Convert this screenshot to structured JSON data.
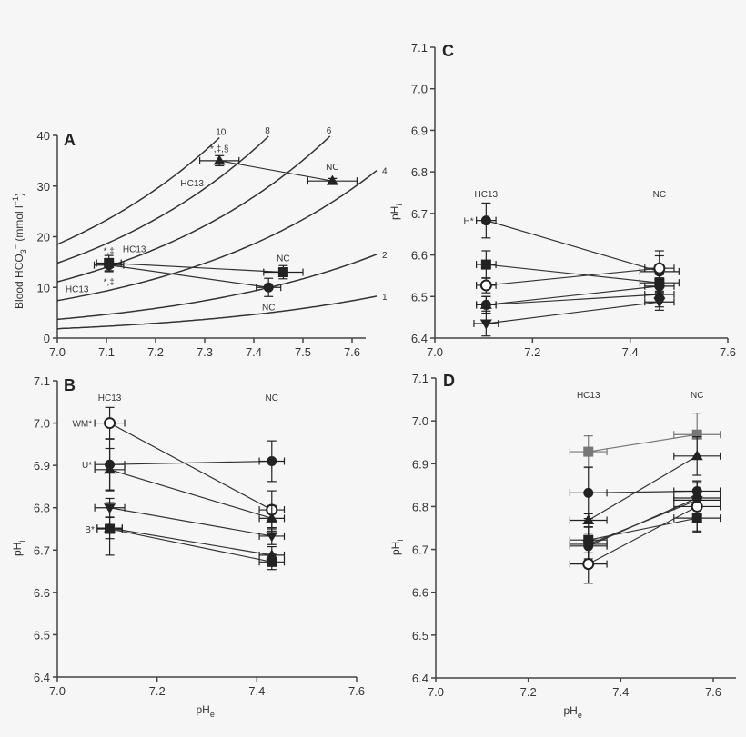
{
  "chart_data": [
    {
      "panel": "A",
      "type": "scatter",
      "ylabel": {
        "main": "Blood HCO",
        "sub": "3",
        "sup": "−",
        "rest": " (mmol l",
        "sup2": "−1",
        "end": ")"
      },
      "xlim": [
        7.0,
        7.65
      ],
      "ylim": [
        0,
        40
      ],
      "xticks": [
        "7.0",
        "7.1",
        "7.2",
        "7.3",
        "7.4",
        "7.5",
        "7.6"
      ],
      "yticks": [
        "0",
        "10",
        "20",
        "30",
        "40"
      ],
      "isopleths": [
        {
          "label": "1",
          "pco2": 1
        },
        {
          "label": "2",
          "pco2": 2
        },
        {
          "label": "4",
          "pco2": 4
        },
        {
          "label": "6",
          "pco2": 6
        },
        {
          "label": "8",
          "pco2": 8
        },
        {
          "label": "10",
          "pco2": 10
        }
      ],
      "isopleth_hco3_at_ph7_per_unit": 1.85,
      "series": [
        {
          "marker": "triangle-up",
          "points": [
            {
              "x": 7.33,
              "y": 35.0,
              "xerr": 0.04,
              "yerr": 1.0,
              "label": "HC13",
              "note": "*,‡,§"
            },
            {
              "x": 7.56,
              "y": 31.0,
              "xerr": 0.05,
              "yerr": 0.5,
              "label": "NC"
            }
          ]
        },
        {
          "marker": "square",
          "points": [
            {
              "x": 7.105,
              "y": 14.8,
              "xerr": 0.025,
              "yerr": 1.5,
              "label": "HC13",
              "note": "*,‡"
            },
            {
              "x": 7.46,
              "y": 13.0,
              "xerr": 0.04,
              "yerr": 1.3,
              "label": "NC"
            }
          ]
        },
        {
          "marker": "circle",
          "points": [
            {
              "x": 7.105,
              "y": 14.4,
              "xerr": 0.03,
              "yerr": 1.3,
              "label": "HC13",
              "note": "*,‡"
            },
            {
              "x": 7.43,
              "y": 10.0,
              "xerr": 0.025,
              "yerr": 1.8,
              "label": "NC"
            }
          ]
        }
      ]
    },
    {
      "panel": "B",
      "type": "scatter",
      "xlabel": {
        "main": "pH",
        "sub": "e"
      },
      "ylabel": {
        "main": "pH",
        "sub": "i"
      },
      "xlim": [
        7.0,
        7.6
      ],
      "ylim": [
        6.4,
        7.1
      ],
      "xticks": [
        "7.0",
        "7.2",
        "7.4",
        "7.6"
      ],
      "yticks": [
        "6.4",
        "6.5",
        "6.6",
        "6.7",
        "6.8",
        "6.9",
        "7.0",
        "7.1"
      ],
      "group_labels": [
        {
          "text": "HC13",
          "x": 7.105
        },
        {
          "text": "NC",
          "x": 7.43
        }
      ],
      "series": [
        {
          "marker": "circle-open",
          "tag": "WM*",
          "points": [
            {
              "x": 7.105,
              "y": 7.0,
              "xerr": 0.03,
              "yerr": 0.037
            },
            {
              "x": 7.43,
              "y": 6.795,
              "xerr": 0.025,
              "yerr": 0.045
            }
          ]
        },
        {
          "marker": "circle",
          "tag": "U*",
          "points": [
            {
              "x": 7.105,
              "y": 6.902,
              "xerr": 0.03,
              "yerr": 0.06
            },
            {
              "x": 7.43,
              "y": 6.91,
              "xerr": 0.025,
              "yerr": 0.048
            }
          ]
        },
        {
          "marker": "triangle-up",
          "points": [
            {
              "x": 7.105,
              "y": 6.89,
              "xerr": 0.03,
              "yerr": 0.05
            },
            {
              "x": 7.43,
              "y": 6.775,
              "xerr": 0.025,
              "yerr": 0.03
            }
          ]
        },
        {
          "marker": "triangle-down",
          "points": [
            {
              "x": 7.105,
              "y": 6.8,
              "xerr": 0.03,
              "yerr": 0.022
            },
            {
              "x": 7.43,
              "y": 6.733,
              "xerr": 0.025,
              "yerr": 0.02
            }
          ]
        },
        {
          "marker": "square",
          "tag": "B*",
          "points": [
            {
              "x": 7.105,
              "y": 6.75,
              "xerr": 0.025,
              "yerr": 0.062
            },
            {
              "x": 7.43,
              "y": 6.672,
              "xerr": 0.025,
              "yerr": 0.018
            }
          ]
        },
        {
          "marker": "triangle-up",
          "points": [
            {
              "x": 7.105,
              "y": 6.752,
              "xerr": 0.025,
              "yerr": 0.025
            },
            {
              "x": 7.43,
              "y": 6.688,
              "xerr": 0.025,
              "yerr": 0.02
            }
          ]
        }
      ]
    },
    {
      "panel": "C",
      "type": "scatter",
      "ylabel": {
        "main": "pH",
        "sub": "i"
      },
      "xlim": [
        7.0,
        7.6
      ],
      "ylim": [
        6.4,
        7.1
      ],
      "xticks": [
        "7.0",
        "7.2",
        "7.4",
        "7.6"
      ],
      "yticks": [
        "6.4",
        "6.5",
        "6.6",
        "6.7",
        "6.8",
        "6.9",
        "7.0",
        "7.1"
      ],
      "group_labels": [
        {
          "text": "HC13",
          "x": 7.105
        },
        {
          "text": "NC",
          "x": 7.46
        }
      ],
      "series": [
        {
          "marker": "circle",
          "tag": "H*",
          "points": [
            {
              "x": 7.105,
              "y": 6.683,
              "xerr": 0.02,
              "yerr": 0.042
            },
            {
              "x": 7.46,
              "y": 6.56,
              "xerr": 0.04,
              "yerr": 0.05
            }
          ]
        },
        {
          "marker": "square",
          "points": [
            {
              "x": 7.105,
              "y": 6.577,
              "xerr": 0.02,
              "yerr": 0.033
            },
            {
              "x": 7.46,
              "y": 6.533,
              "xerr": 0.04,
              "yerr": 0.02
            }
          ]
        },
        {
          "marker": "circle-open",
          "points": [
            {
              "x": 7.105,
              "y": 6.527,
              "xerr": 0.02,
              "yerr": 0.018
            },
            {
              "x": 7.46,
              "y": 6.568,
              "xerr": 0.03,
              "yerr": 0.03
            }
          ]
        },
        {
          "marker": "circle",
          "points": [
            {
              "x": 7.105,
              "y": 6.48,
              "xerr": 0.02,
              "yerr": 0.02
            },
            {
              "x": 7.46,
              "y": 6.525,
              "xerr": 0.03,
              "yerr": 0.02
            }
          ]
        },
        {
          "marker": "triangle-up",
          "points": [
            {
              "x": 7.105,
              "y": 6.48,
              "xerr": 0.02,
              "yerr": 0.02
            },
            {
              "x": 7.46,
              "y": 6.505,
              "xerr": 0.03,
              "yerr": 0.03
            }
          ]
        },
        {
          "marker": "triangle-down",
          "points": [
            {
              "x": 7.105,
              "y": 6.435,
              "xerr": 0.025,
              "yerr": 0.03
            },
            {
              "x": 7.46,
              "y": 6.487,
              "xerr": 0.03,
              "yerr": 0.02
            }
          ]
        }
      ]
    },
    {
      "panel": "D",
      "type": "scatter",
      "xlabel": {
        "main": "pH",
        "sub": "e"
      },
      "ylabel": {
        "main": "pH",
        "sub": "i"
      },
      "xlim": [
        7.0,
        7.65
      ],
      "ylim": [
        6.4,
        7.1
      ],
      "xticks": [
        "7.0",
        "7.2",
        "7.4",
        "7.6"
      ],
      "yticks": [
        "6.4",
        "6.5",
        "6.6",
        "6.7",
        "6.8",
        "6.9",
        "7.0",
        "7.1"
      ],
      "group_labels": [
        {
          "text": "HC13",
          "x": 7.33
        },
        {
          "text": "NC",
          "x": 7.565
        }
      ],
      "series": [
        {
          "marker": "square",
          "color": "#777777",
          "points": [
            {
              "x": 7.33,
              "y": 6.928,
              "xerr": 0.04,
              "yerr": 0.037
            },
            {
              "x": 7.565,
              "y": 6.968,
              "xerr": 0.05,
              "yerr": 0.05
            }
          ]
        },
        {
          "marker": "triangle-up",
          "points": [
            {
              "x": 7.33,
              "y": 6.768,
              "xerr": 0.04,
              "yerr": 0.015
            },
            {
              "x": 7.565,
              "y": 6.918,
              "xerr": 0.05,
              "yerr": 0.045
            }
          ]
        },
        {
          "marker": "circle",
          "points": [
            {
              "x": 7.33,
              "y": 6.832,
              "xerr": 0.04,
              "yerr": 0.06
            },
            {
              "x": 7.565,
              "y": 6.836,
              "xerr": 0.05,
              "yerr": 0.02
            }
          ]
        },
        {
          "marker": "square",
          "points": [
            {
              "x": 7.33,
              "y": 6.722,
              "xerr": 0.04,
              "yerr": 0.03
            },
            {
              "x": 7.565,
              "y": 6.773,
              "xerr": 0.05,
              "yerr": 0.03
            }
          ]
        },
        {
          "marker": "triangle-down",
          "points": [
            {
              "x": 7.33,
              "y": 6.712,
              "xerr": 0.04,
              "yerr": 0.04
            },
            {
              "x": 7.565,
              "y": 6.815,
              "xerr": 0.05,
              "yerr": 0.04
            }
          ]
        },
        {
          "marker": "circle",
          "points": [
            {
              "x": 7.33,
              "y": 6.708,
              "xerr": 0.04,
              "yerr": 0.03
            },
            {
              "x": 7.565,
              "y": 6.82,
              "xerr": 0.05,
              "yerr": 0.04
            }
          ]
        },
        {
          "marker": "circle-open",
          "points": [
            {
              "x": 7.33,
              "y": 6.666,
              "xerr": 0.04,
              "yerr": 0.045
            },
            {
              "x": 7.565,
              "y": 6.8,
              "xerr": 0.05,
              "yerr": 0.06
            }
          ]
        }
      ]
    }
  ],
  "colors": {
    "ink": "#222222",
    "line": "#333333",
    "grey_series": "#777777",
    "background": "#f6f6f6"
  }
}
